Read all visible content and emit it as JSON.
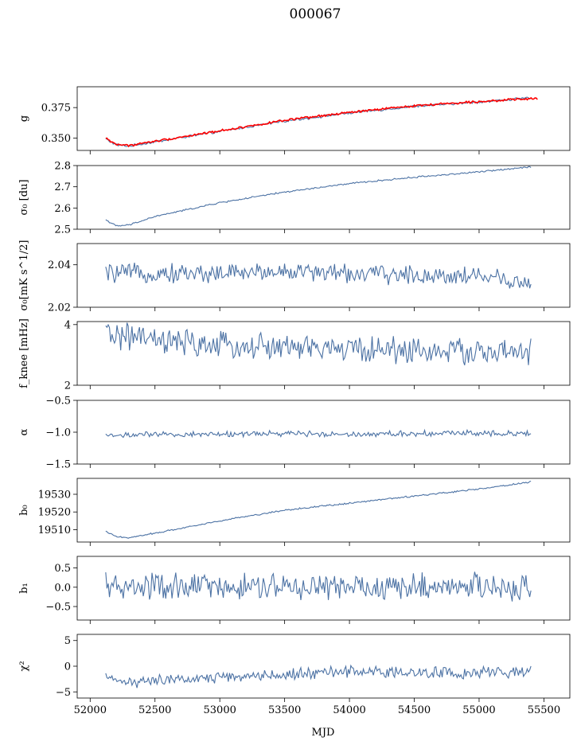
{
  "figure": {
    "title": "000067",
    "xlabel": "MJD"
  },
  "colors": {
    "series": "#4c72a4",
    "overlay": "#ff0000",
    "axes": "#000000"
  },
  "chart_data": [
    {
      "type": "line",
      "id": "g",
      "ylabel": "g",
      "xlim": [
        51900,
        55700
      ],
      "ylim": [
        0.34,
        0.392
      ],
      "yticks": [
        0.35,
        0.375
      ],
      "ytick_labels": [
        "0.350",
        "0.375"
      ],
      "series": [
        {
          "values_x": [
            52120,
            52200,
            52300,
            52500,
            53000,
            53500,
            54000,
            54500,
            55000,
            55400
          ],
          "values_y": [
            0.3495,
            0.3445,
            0.3435,
            0.347,
            0.3555,
            0.364,
            0.3705,
            0.376,
            0.3795,
            0.383
          ],
          "noise": 0.0008,
          "color": "series"
        },
        {
          "values_x": [
            52120,
            52200,
            52300,
            52500,
            53000,
            53500,
            54000,
            54500,
            55000,
            55450
          ],
          "values_y": [
            0.35,
            0.345,
            0.344,
            0.3475,
            0.356,
            0.3645,
            0.371,
            0.3765,
            0.38,
            0.3825
          ],
          "noise": 0.0007,
          "color": "overlay"
        }
      ]
    },
    {
      "type": "line",
      "id": "sigma0_du",
      "ylabel": "σ₀ [du]",
      "xlim": [
        51900,
        55700
      ],
      "ylim": [
        2.5,
        2.8
      ],
      "yticks": [
        2.5,
        2.6,
        2.7,
        2.8
      ],
      "ytick_labels": [
        "2.5",
        "2.6",
        "2.7",
        "2.8"
      ],
      "series": [
        {
          "values_x": [
            52120,
            52200,
            52300,
            52500,
            53000,
            53500,
            54000,
            54500,
            55000,
            55400
          ],
          "values_y": [
            2.545,
            2.515,
            2.52,
            2.56,
            2.625,
            2.675,
            2.715,
            2.745,
            2.77,
            2.795
          ],
          "noise": 0.003,
          "color": "series"
        }
      ]
    },
    {
      "type": "line",
      "id": "sigma0_mks",
      "ylabel": "σ₀[mK s^1/2]",
      "xlim": [
        51900,
        55700
      ],
      "ylim": [
        2.02,
        2.05
      ],
      "yticks": [
        2.02,
        2.04
      ],
      "ytick_labels": [
        "2.02",
        "2.04"
      ],
      "series": [
        {
          "values_x": [
            52120,
            52500,
            53000,
            53500,
            54000,
            54500,
            55000,
            55400
          ],
          "values_y": [
            2.036,
            2.036,
            2.036,
            2.037,
            2.036,
            2.035,
            2.035,
            2.031
          ],
          "noise": 0.0035,
          "color": "series"
        }
      ]
    },
    {
      "type": "line",
      "id": "fknee",
      "ylabel": "f_knee [mHz]",
      "xlim": [
        51900,
        55700
      ],
      "ylim": [
        2.0,
        4.1
      ],
      "yticks": [
        2,
        4
      ],
      "ytick_labels": [
        "2",
        "4"
      ],
      "series": [
        {
          "values_x": [
            52120,
            52300,
            52600,
            53000,
            53500,
            54000,
            54500,
            55000,
            55400
          ],
          "values_y": [
            3.7,
            3.6,
            3.4,
            3.3,
            3.25,
            3.2,
            3.15,
            3.1,
            3.05
          ],
          "noise": 0.35,
          "color": "series"
        }
      ]
    },
    {
      "type": "line",
      "id": "alpha",
      "ylabel": "α",
      "xlim": [
        51900,
        55700
      ],
      "ylim": [
        -1.5,
        -0.5
      ],
      "yticks": [
        -1.5,
        -1.0,
        -0.5
      ],
      "ytick_labels": [
        "−1.5",
        "−1.0",
        "−0.5"
      ],
      "series": [
        {
          "values_x": [
            52120,
            52500,
            53000,
            53500,
            54000,
            54500,
            55000,
            55400
          ],
          "values_y": [
            -1.05,
            -1.04,
            -1.03,
            -1.02,
            -1.03,
            -1.02,
            -1.01,
            -1.02
          ],
          "noise": 0.035,
          "color": "series"
        }
      ]
    },
    {
      "type": "line",
      "id": "b0",
      "ylabel": "b₀",
      "xlim": [
        51900,
        55700
      ],
      "ylim": [
        19503,
        19539
      ],
      "yticks": [
        19510,
        19520,
        19530
      ],
      "ytick_labels": [
        "19510",
        "19520",
        "19530"
      ],
      "series": [
        {
          "values_x": [
            52120,
            52200,
            52300,
            52500,
            53000,
            53500,
            54000,
            54500,
            55000,
            55400
          ],
          "values_y": [
            19509,
            19506,
            19505.5,
            19508,
            19515,
            19521,
            19525,
            19529,
            19533,
            19537
          ],
          "noise": 0.35,
          "color": "series"
        }
      ]
    },
    {
      "type": "line",
      "id": "b1",
      "ylabel": "b₁",
      "xlim": [
        51900,
        55700
      ],
      "ylim": [
        -0.85,
        0.8
      ],
      "yticks": [
        -0.5,
        0.0,
        0.5
      ],
      "ytick_labels": [
        "−0.5",
        "0.0",
        "0.5"
      ],
      "series": [
        {
          "values_x": [
            52120,
            55400
          ],
          "values_y": [
            0.0,
            0.0
          ],
          "noise": 0.28,
          "color": "series"
        }
      ]
    },
    {
      "type": "line",
      "id": "chi2",
      "ylabel": "χ²",
      "xlim": [
        51900,
        55700
      ],
      "ylim": [
        -6.2,
        6.2
      ],
      "yticks": [
        -5,
        0,
        5
      ],
      "ytick_labels": [
        "−5",
        "0",
        "5"
      ],
      "xticks": [
        52000,
        52500,
        53000,
        53500,
        54000,
        54500,
        55000,
        55500
      ],
      "xtick_labels": [
        "52000",
        "52500",
        "53000",
        "53500",
        "54000",
        "54500",
        "55000",
        "55500"
      ],
      "series": [
        {
          "values_x": [
            52120,
            52300,
            52600,
            53000,
            53500,
            54000,
            54500,
            55000,
            55400
          ],
          "values_y": [
            -2.5,
            -3.0,
            -2.8,
            -2.2,
            -1.6,
            -1.0,
            -1.2,
            -1.3,
            -1.0
          ],
          "noise": 0.9,
          "color": "series"
        }
      ]
    }
  ]
}
